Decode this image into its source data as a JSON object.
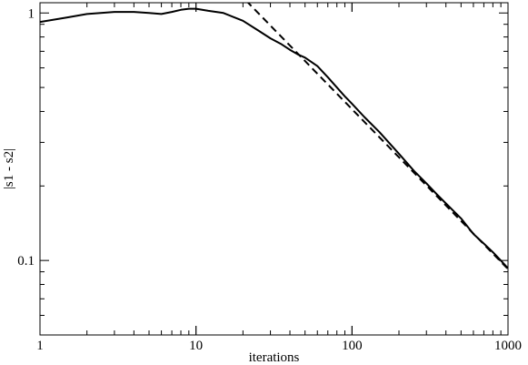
{
  "chart_data": {
    "type": "line",
    "title": "",
    "xlabel": "iterations",
    "ylabel": "|s1 - s2|",
    "x_scale": "log",
    "y_scale": "log",
    "xlim": [
      1,
      1000
    ],
    "ylim": [
      0.05,
      1.1
    ],
    "grid": false,
    "x_ticks": [
      {
        "value": 1,
        "label": "1"
      },
      {
        "value": 10,
        "label": "10"
      },
      {
        "value": 100,
        "label": "100"
      },
      {
        "value": 1000,
        "label": "1000"
      }
    ],
    "y_ticks": [
      {
        "value": 0.1,
        "label": "0.1"
      },
      {
        "value": 1,
        "label": "1"
      }
    ],
    "series": [
      {
        "style": "solid",
        "color": "#000000",
        "x": [
          1,
          1.5,
          2,
          3,
          4,
          5,
          6,
          7,
          8,
          9,
          10,
          12,
          15,
          20,
          25,
          30,
          35,
          40,
          45,
          50,
          60,
          70,
          80,
          90,
          100,
          120,
          150,
          200,
          250,
          300,
          350,
          400,
          500,
          600,
          700,
          800,
          900,
          1000
        ],
        "y": [
          0.92,
          0.96,
          0.99,
          1.01,
          1.01,
          1.0,
          0.99,
          1.01,
          1.03,
          1.04,
          1.04,
          1.02,
          1.0,
          0.93,
          0.85,
          0.79,
          0.75,
          0.71,
          0.68,
          0.66,
          0.61,
          0.55,
          0.5,
          0.46,
          0.43,
          0.38,
          0.33,
          0.27,
          0.23,
          0.205,
          0.185,
          0.17,
          0.148,
          0.128,
          0.117,
          0.108,
          0.1,
          0.093
        ]
      },
      {
        "style": "dashed",
        "color": "#000000",
        "x": [
          21,
          1000
        ],
        "y": [
          1.12,
          0.0923
        ]
      }
    ]
  }
}
